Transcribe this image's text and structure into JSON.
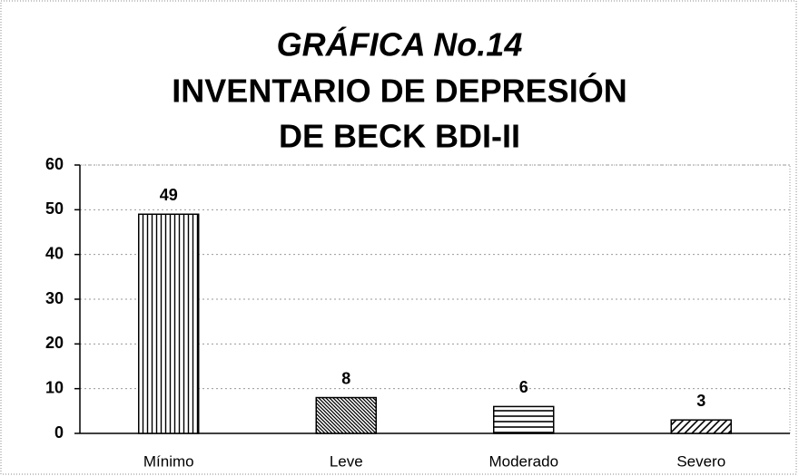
{
  "chart_data": {
    "type": "bar",
    "title": [
      "GRÁFICA No.14",
      "INVENTARIO DE DEPRESIÓN",
      "DE BECK BDI-II"
    ],
    "categories": [
      "Mínimo",
      "Leve",
      "Moderado",
      "Severo"
    ],
    "values": [
      49,
      8,
      6,
      3
    ],
    "patterns": [
      "vertical",
      "diagonal-down",
      "horizontal",
      "diagonal-up"
    ],
    "color": "#000000",
    "ylim": [
      0,
      60
    ],
    "yticks": [
      0,
      10,
      20,
      30,
      40,
      50,
      60
    ],
    "grid": true
  }
}
